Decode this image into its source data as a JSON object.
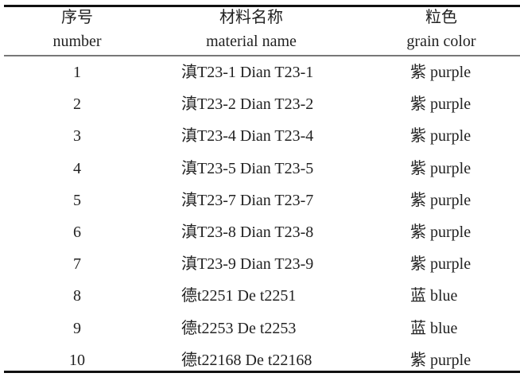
{
  "table": {
    "headers": [
      {
        "zh": "序号",
        "en": "number"
      },
      {
        "zh": "材料名称",
        "en": "material name"
      },
      {
        "zh": "粒色",
        "en": "grain color"
      }
    ],
    "rows": [
      {
        "number": "1",
        "material": "滇T23-1 Dian T23-1",
        "color": "紫 purple"
      },
      {
        "number": "2",
        "material": "滇T23-2 Dian T23-2",
        "color": "紫 purple"
      },
      {
        "number": "3",
        "material": "滇T23-4 Dian T23-4",
        "color": "紫 purple"
      },
      {
        "number": "4",
        "material": "滇T23-5 Dian T23-5",
        "color": "紫 purple"
      },
      {
        "number": "5",
        "material": "滇T23-7 Dian T23-7",
        "color": "紫 purple"
      },
      {
        "number": "6",
        "material": "滇T23-8 Dian T23-8",
        "color": "紫 purple"
      },
      {
        "number": "7",
        "material": "滇T23-9 Dian T23-9",
        "color": "紫 purple"
      },
      {
        "number": "8",
        "material": "德t2251 De t2251",
        "color": "蓝 blue"
      },
      {
        "number": "9",
        "material": "德t2253 De t2253",
        "color": "蓝 blue"
      },
      {
        "number": "10",
        "material": "德t22168 De t22168",
        "color": "紫 purple"
      }
    ]
  }
}
